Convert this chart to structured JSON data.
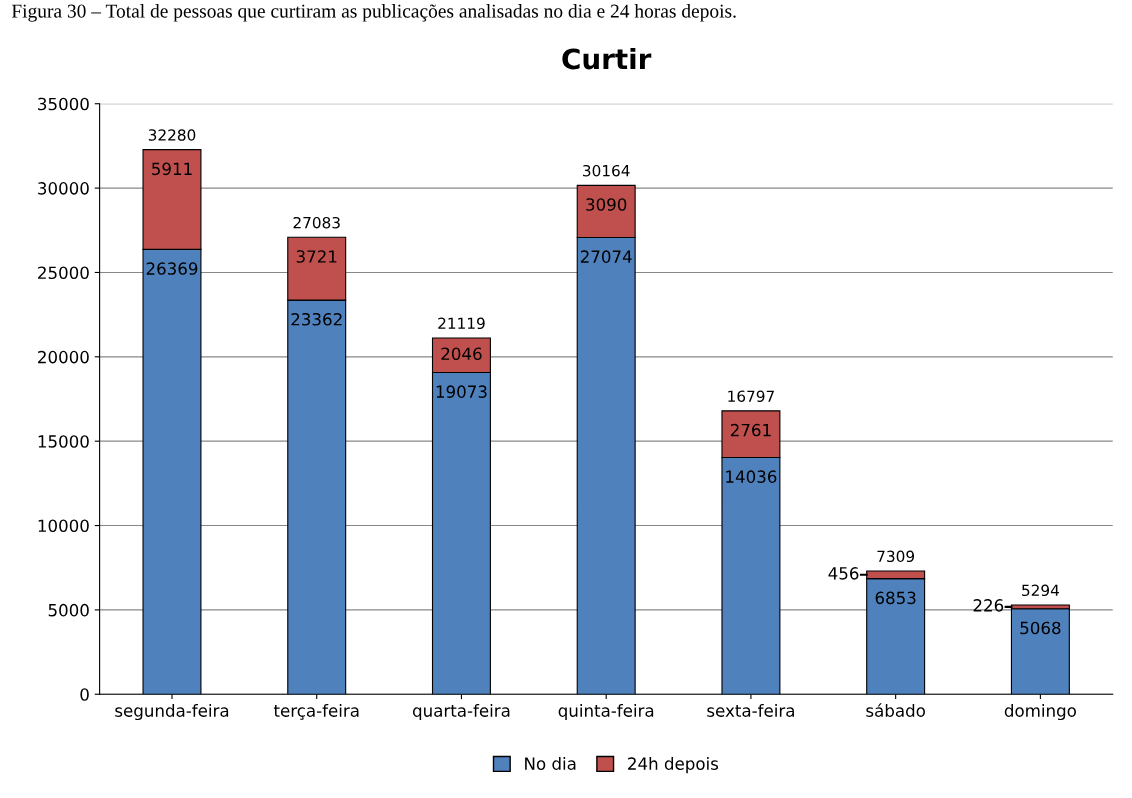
{
  "chart_data": {
    "type": "bar",
    "title": "Curtir",
    "annotations": [
      "Figura 30 – Total de pessoas que curtiram as publicações analisadas no dia e 24 horas depois."
    ],
    "categories": [
      "segunda-feira",
      "terça-feira",
      "quarta-feira",
      "quinta-feira",
      "sexta-feira",
      "sábado",
      "domingo"
    ],
    "stacked": true,
    "series": [
      {
        "name": "No dia",
        "color": "#4f81bd",
        "values": [
          26369,
          23362,
          19073,
          27074,
          14036,
          6853,
          5068
        ]
      },
      {
        "name": "24h depois",
        "color": "#c0504d",
        "values": [
          5911,
          3721,
          2046,
          3090,
          2761,
          456,
          226
        ]
      }
    ],
    "totals": [
      "32280",
      "27083",
      "21119",
      "30164",
      "16797",
      "7309",
      "5294"
    ],
    "data_labels": true,
    "ylim": [
      0,
      35000
    ],
    "yticks": [
      0,
      5000,
      10000,
      15000,
      20000,
      25000,
      30000,
      35000
    ],
    "grid": "y",
    "legend": "bottom"
  }
}
